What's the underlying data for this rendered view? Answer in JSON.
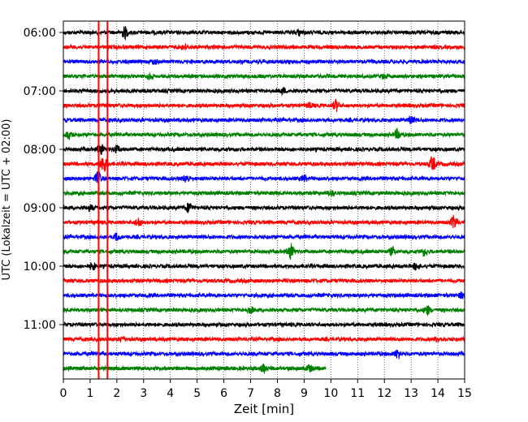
{
  "chart_data": {
    "type": "line",
    "subtype": "helicorder-seismogram",
    "title": "",
    "xlabel": "Zeit  [min]",
    "ylabel": "UTC (Lokalzeit = UTC + 02:00)",
    "xlim": [
      0,
      15
    ],
    "x_ticks": [
      "0",
      "1",
      "2",
      "3",
      "4",
      "5",
      "6",
      "7",
      "8",
      "9",
      "10",
      "11",
      "12",
      "13",
      "14",
      "15"
    ],
    "y_tick_labels": [
      "06:00",
      "07:00",
      "08:00",
      "09:00",
      "10:00",
      "11:00"
    ],
    "grid": {
      "vertical_dotted": true,
      "horizontal": false
    },
    "trace_count": 24,
    "trace_interval_minutes": 15,
    "start_time": "06:00",
    "color_cycle": [
      "#000000",
      "#ff0000",
      "#0000ff",
      "#008000"
    ],
    "last_trace_end_minute": 9.8,
    "marker_lines": {
      "color": "#ff0000",
      "x_minutes": [
        1.32,
        1.65
      ]
    },
    "events": [
      {
        "trace": 0,
        "minute": 2.3,
        "strength": 2.0
      },
      {
        "trace": 0,
        "minute": 8.8,
        "strength": 1.0
      },
      {
        "trace": 1,
        "minute": 4.5,
        "strength": 0.8
      },
      {
        "trace": 2,
        "minute": 3.4,
        "strength": 0.8
      },
      {
        "trace": 3,
        "minute": 3.2,
        "strength": 0.9
      },
      {
        "trace": 3,
        "minute": 12.0,
        "strength": 0.8
      },
      {
        "trace": 4,
        "minute": 8.2,
        "strength": 0.9
      },
      {
        "trace": 5,
        "minute": 10.2,
        "strength": 2.0
      },
      {
        "trace": 5,
        "minute": 9.2,
        "strength": 0.8
      },
      {
        "trace": 6,
        "minute": 13.0,
        "strength": 1.0
      },
      {
        "trace": 7,
        "minute": 0.2,
        "strength": 1.4
      },
      {
        "trace": 7,
        "minute": 12.5,
        "strength": 1.8
      },
      {
        "trace": 8,
        "minute": 1.4,
        "strength": 1.8
      },
      {
        "trace": 8,
        "minute": 2.0,
        "strength": 1.2
      },
      {
        "trace": 9,
        "minute": 1.5,
        "strength": 3.2
      },
      {
        "trace": 9,
        "minute": 13.8,
        "strength": 2.6
      },
      {
        "trace": 10,
        "minute": 1.3,
        "strength": 2.4
      },
      {
        "trace": 10,
        "minute": 4.6,
        "strength": 1.4
      },
      {
        "trace": 10,
        "minute": 9.0,
        "strength": 1.1
      },
      {
        "trace": 11,
        "minute": 10.0,
        "strength": 1.0
      },
      {
        "trace": 12,
        "minute": 4.7,
        "strength": 1.8
      },
      {
        "trace": 12,
        "minute": 1.0,
        "strength": 1.0
      },
      {
        "trace": 13,
        "minute": 2.8,
        "strength": 1.5
      },
      {
        "trace": 13,
        "minute": 14.6,
        "strength": 2.4
      },
      {
        "trace": 14,
        "minute": 2.0,
        "strength": 1.2
      },
      {
        "trace": 15,
        "minute": 8.5,
        "strength": 2.8
      },
      {
        "trace": 15,
        "minute": 12.3,
        "strength": 1.3
      },
      {
        "trace": 15,
        "minute": 13.5,
        "strength": 1.3
      },
      {
        "trace": 16,
        "minute": 1.1,
        "strength": 1.2
      },
      {
        "trace": 16,
        "minute": 13.2,
        "strength": 1.3
      },
      {
        "trace": 18,
        "minute": 14.9,
        "strength": 1.0
      },
      {
        "trace": 19,
        "minute": 7.0,
        "strength": 1.0
      },
      {
        "trace": 19,
        "minute": 13.6,
        "strength": 1.5
      },
      {
        "trace": 21,
        "minute": 2.2,
        "strength": 0.8
      },
      {
        "trace": 21,
        "minute": 14.0,
        "strength": 0.9
      },
      {
        "trace": 22,
        "minute": 12.5,
        "strength": 1.6
      },
      {
        "trace": 23,
        "minute": 7.5,
        "strength": 1.5
      },
      {
        "trace": 23,
        "minute": 9.2,
        "strength": 1.0
      }
    ]
  }
}
